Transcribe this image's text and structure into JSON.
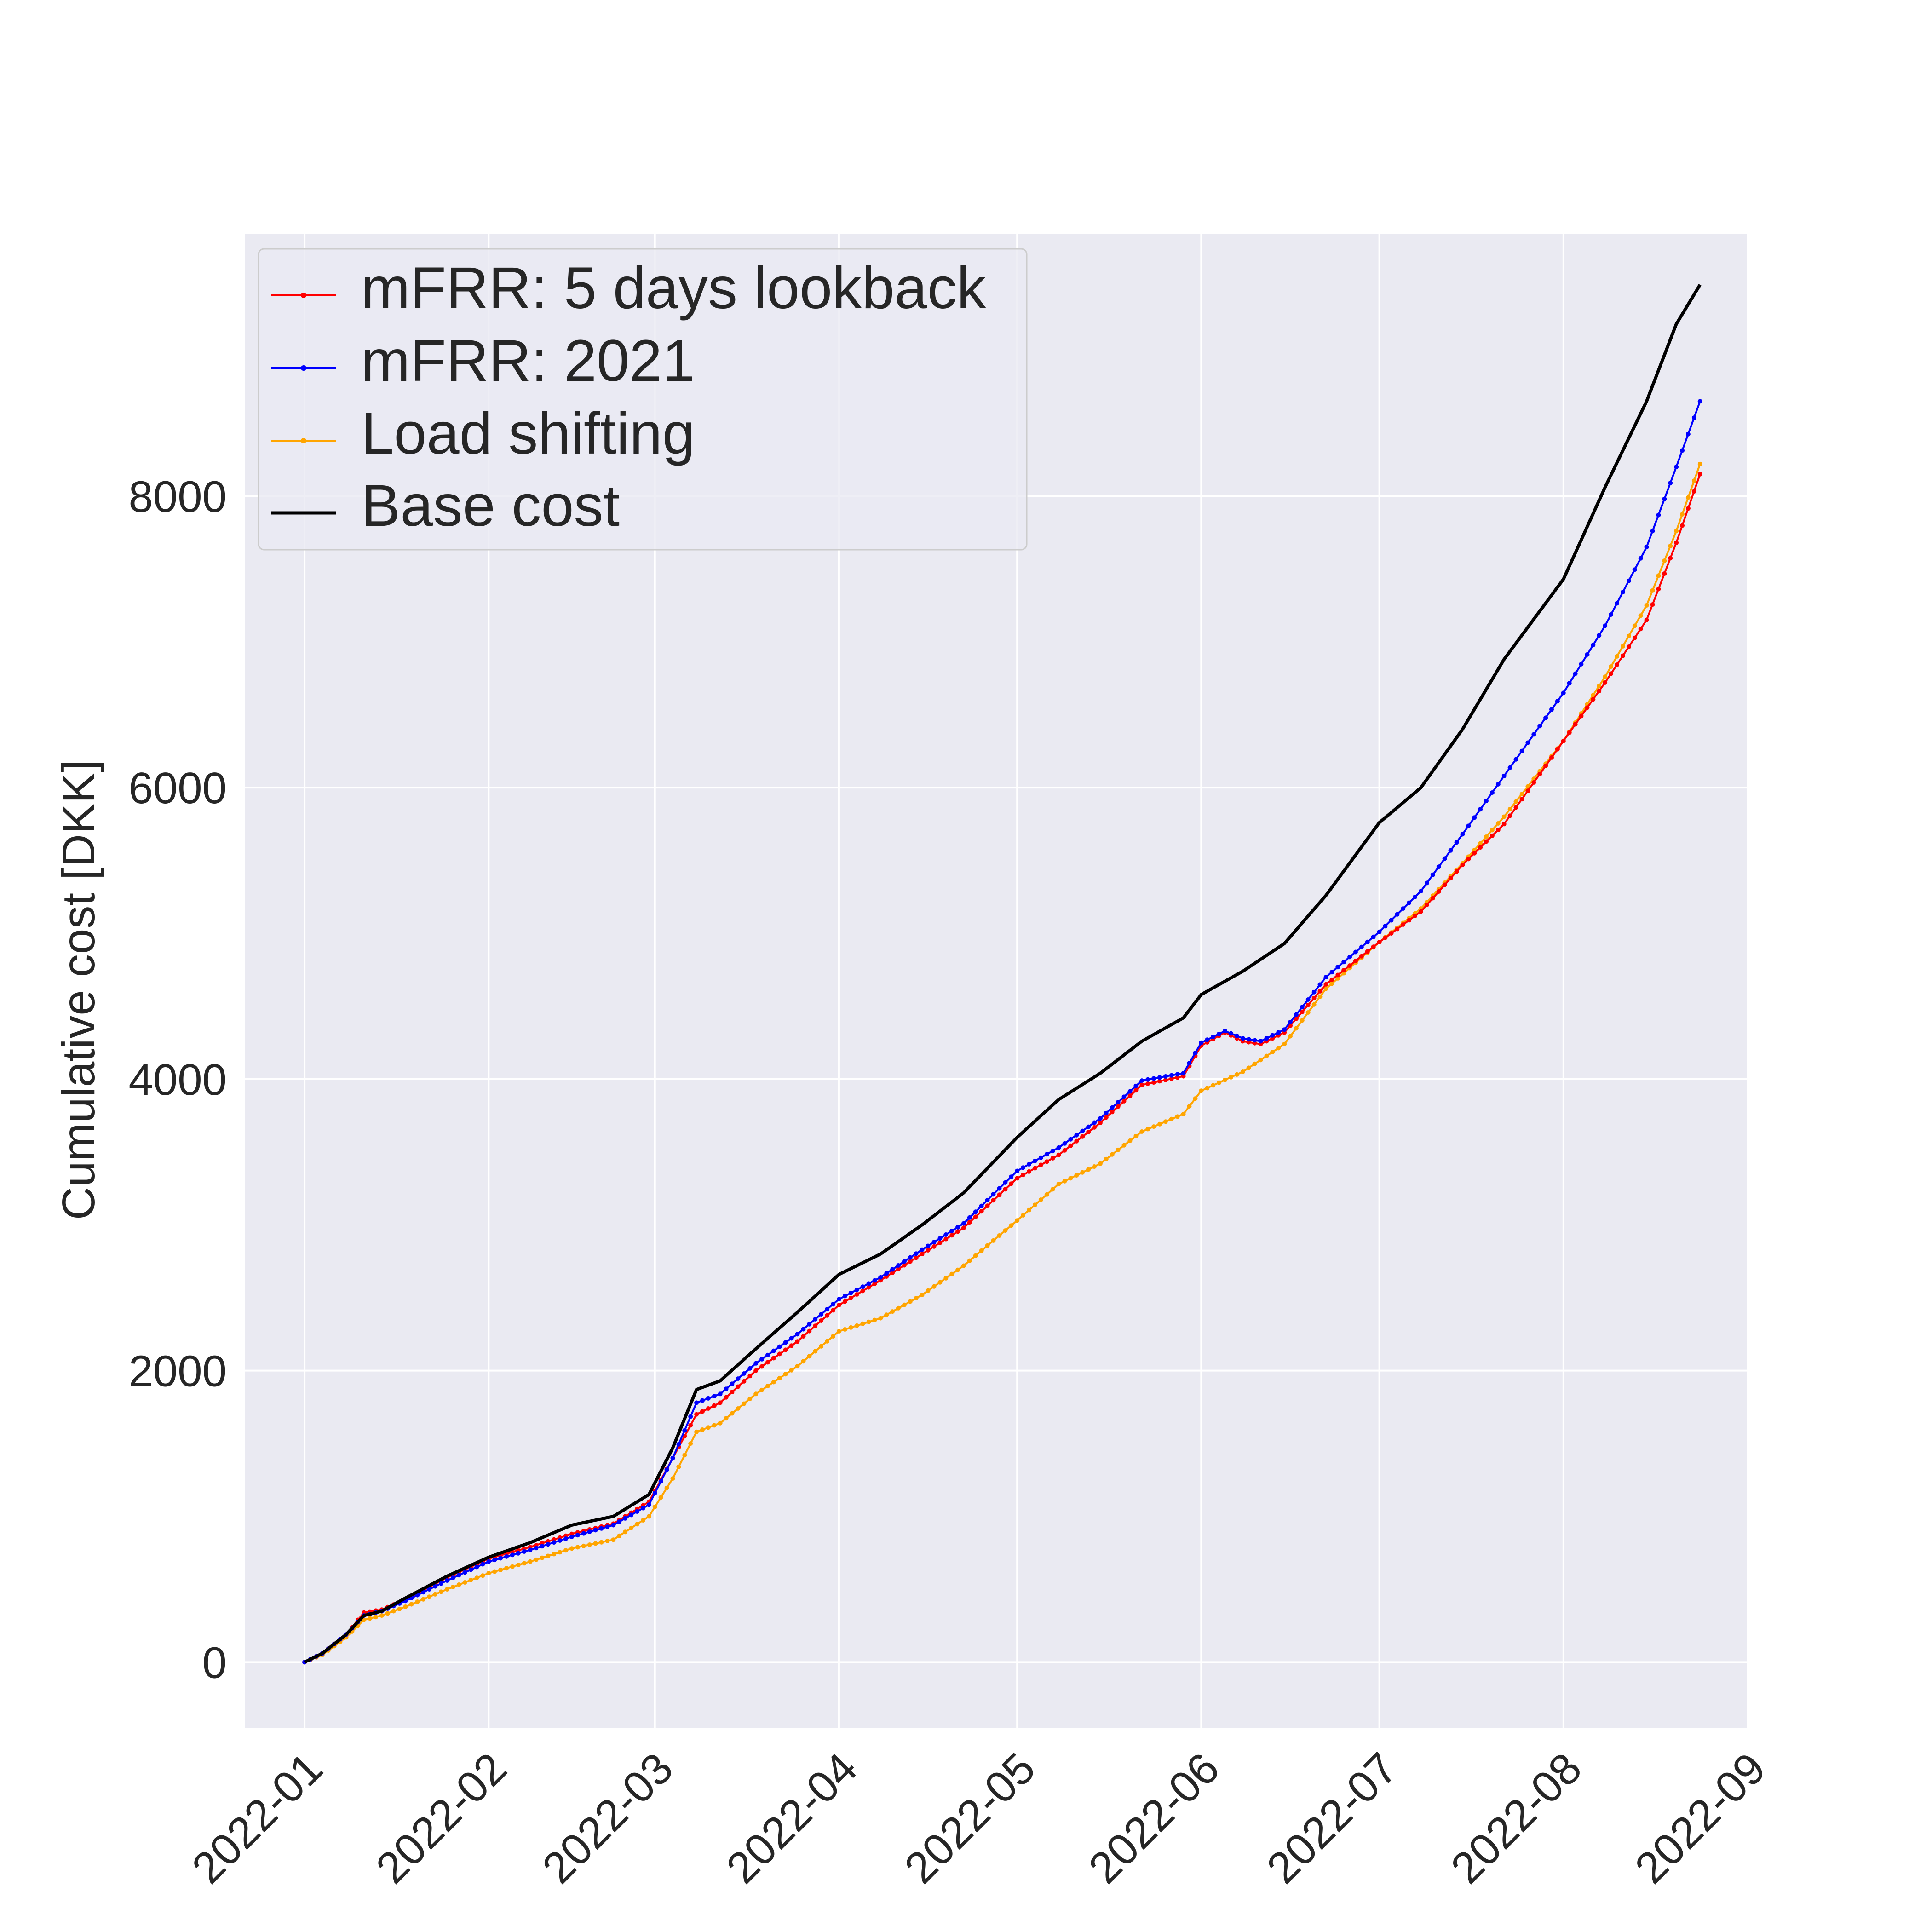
{
  "chart_data": {
    "type": "line",
    "title": "",
    "xlabel": "",
    "ylabel": "Cumulative cost [DKK]",
    "x_ticks": [
      "2022-01",
      "2022-02",
      "2022-03",
      "2022-04",
      "2022-05",
      "2022-06",
      "2022-07",
      "2022-08",
      "2022-09"
    ],
    "y_ticks": [
      0,
      2000,
      4000,
      6000,
      8000
    ],
    "xlim": [
      "2021-12-22",
      "2022-09-01"
    ],
    "ylim": [
      -450,
      9800
    ],
    "grid": true,
    "background": "#eaeaf2",
    "legend_position": "upper-left",
    "series": [
      {
        "name": "mFRR: 5 days lookback",
        "color": "#ff0000",
        "markers": true,
        "points": [
          [
            "2022-01-01",
            0
          ],
          [
            "2022-01-04",
            60
          ],
          [
            "2022-01-08",
            190
          ],
          [
            "2022-01-11",
            340
          ],
          [
            "2022-01-14",
            360
          ],
          [
            "2022-01-18",
            430
          ],
          [
            "2022-01-25",
            580
          ],
          [
            "2022-02-01",
            710
          ],
          [
            "2022-02-08",
            790
          ],
          [
            "2022-02-15",
            880
          ],
          [
            "2022-02-22",
            950
          ],
          [
            "2022-02-28",
            1100
          ],
          [
            "2022-03-04",
            1400
          ],
          [
            "2022-03-08",
            1700
          ],
          [
            "2022-03-12",
            1780
          ],
          [
            "2022-03-18",
            2000
          ],
          [
            "2022-03-25",
            2200
          ],
          [
            "2022-04-01",
            2450
          ],
          [
            "2022-04-08",
            2620
          ],
          [
            "2022-04-15",
            2800
          ],
          [
            "2022-04-22",
            2980
          ],
          [
            "2022-05-01",
            3320
          ],
          [
            "2022-05-08",
            3480
          ],
          [
            "2022-05-15",
            3700
          ],
          [
            "2022-05-22",
            3960
          ],
          [
            "2022-05-29",
            4020
          ],
          [
            "2022-06-01",
            4230
          ],
          [
            "2022-06-05",
            4320
          ],
          [
            "2022-06-08",
            4260
          ],
          [
            "2022-06-11",
            4240
          ],
          [
            "2022-06-15",
            4320
          ],
          [
            "2022-06-22",
            4650
          ],
          [
            "2022-07-01",
            4940
          ],
          [
            "2022-07-08",
            5150
          ],
          [
            "2022-07-15",
            5470
          ],
          [
            "2022-07-22",
            5750
          ],
          [
            "2022-08-01",
            6320
          ],
          [
            "2022-08-08",
            6720
          ],
          [
            "2022-08-15",
            7150
          ],
          [
            "2022-08-20",
            7680
          ],
          [
            "2022-08-24",
            8150
          ]
        ]
      },
      {
        "name": "mFRR: 2021",
        "color": "#0000ff",
        "markers": true,
        "points": [
          [
            "2022-01-01",
            0
          ],
          [
            "2022-01-04",
            60
          ],
          [
            "2022-01-08",
            190
          ],
          [
            "2022-01-11",
            320
          ],
          [
            "2022-01-14",
            350
          ],
          [
            "2022-01-18",
            420
          ],
          [
            "2022-01-25",
            560
          ],
          [
            "2022-02-01",
            690
          ],
          [
            "2022-02-08",
            770
          ],
          [
            "2022-02-15",
            860
          ],
          [
            "2022-02-22",
            940
          ],
          [
            "2022-02-28",
            1080
          ],
          [
            "2022-03-04",
            1400
          ],
          [
            "2022-03-08",
            1780
          ],
          [
            "2022-03-12",
            1840
          ],
          [
            "2022-03-18",
            2050
          ],
          [
            "2022-03-25",
            2250
          ],
          [
            "2022-04-01",
            2490
          ],
          [
            "2022-04-08",
            2640
          ],
          [
            "2022-04-15",
            2830
          ],
          [
            "2022-04-22",
            3010
          ],
          [
            "2022-05-01",
            3370
          ],
          [
            "2022-05-08",
            3530
          ],
          [
            "2022-05-15",
            3730
          ],
          [
            "2022-05-22",
            3990
          ],
          [
            "2022-05-29",
            4040
          ],
          [
            "2022-06-01",
            4250
          ],
          [
            "2022-06-05",
            4330
          ],
          [
            "2022-06-08",
            4280
          ],
          [
            "2022-06-11",
            4260
          ],
          [
            "2022-06-15",
            4340
          ],
          [
            "2022-06-22",
            4700
          ],
          [
            "2022-07-01",
            5010
          ],
          [
            "2022-07-08",
            5290
          ],
          [
            "2022-07-15",
            5680
          ],
          [
            "2022-07-22",
            6080
          ],
          [
            "2022-08-01",
            6650
          ],
          [
            "2022-08-08",
            7110
          ],
          [
            "2022-08-15",
            7650
          ],
          [
            "2022-08-20",
            8200
          ],
          [
            "2022-08-24",
            8650
          ]
        ]
      },
      {
        "name": "Load shifting",
        "color": "#ffa500",
        "markers": true,
        "points": [
          [
            "2022-01-01",
            0
          ],
          [
            "2022-01-04",
            50
          ],
          [
            "2022-01-08",
            170
          ],
          [
            "2022-01-11",
            290
          ],
          [
            "2022-01-14",
            320
          ],
          [
            "2022-01-18",
            380
          ],
          [
            "2022-01-25",
            500
          ],
          [
            "2022-02-01",
            610
          ],
          [
            "2022-02-08",
            690
          ],
          [
            "2022-02-15",
            780
          ],
          [
            "2022-02-22",
            840
          ],
          [
            "2022-02-28",
            1000
          ],
          [
            "2022-03-04",
            1260
          ],
          [
            "2022-03-08",
            1580
          ],
          [
            "2022-03-12",
            1640
          ],
          [
            "2022-03-18",
            1840
          ],
          [
            "2022-03-25",
            2030
          ],
          [
            "2022-04-01",
            2270
          ],
          [
            "2022-04-08",
            2360
          ],
          [
            "2022-04-15",
            2520
          ],
          [
            "2022-04-22",
            2720
          ],
          [
            "2022-05-01",
            3030
          ],
          [
            "2022-05-08",
            3280
          ],
          [
            "2022-05-15",
            3420
          ],
          [
            "2022-05-22",
            3640
          ],
          [
            "2022-05-29",
            3760
          ],
          [
            "2022-06-01",
            3920
          ],
          [
            "2022-06-08",
            4050
          ],
          [
            "2022-06-15",
            4240
          ],
          [
            "2022-06-22",
            4620
          ],
          [
            "2022-07-01",
            4940
          ],
          [
            "2022-07-08",
            5170
          ],
          [
            "2022-07-15",
            5480
          ],
          [
            "2022-07-22",
            5800
          ],
          [
            "2022-08-01",
            6320
          ],
          [
            "2022-08-08",
            6760
          ],
          [
            "2022-08-15",
            7250
          ],
          [
            "2022-08-20",
            7760
          ],
          [
            "2022-08-24",
            8220
          ]
        ]
      },
      {
        "name": "Base cost",
        "color": "#000000",
        "markers": false,
        "points": [
          [
            "2022-01-01",
            0
          ],
          [
            "2022-01-04",
            60
          ],
          [
            "2022-01-08",
            190
          ],
          [
            "2022-01-11",
            320
          ],
          [
            "2022-01-14",
            350
          ],
          [
            "2022-01-18",
            440
          ],
          [
            "2022-01-25",
            590
          ],
          [
            "2022-02-01",
            720
          ],
          [
            "2022-02-08",
            820
          ],
          [
            "2022-02-15",
            940
          ],
          [
            "2022-02-22",
            1000
          ],
          [
            "2022-02-28",
            1150
          ],
          [
            "2022-03-04",
            1470
          ],
          [
            "2022-03-08",
            1870
          ],
          [
            "2022-03-12",
            1930
          ],
          [
            "2022-03-18",
            2150
          ],
          [
            "2022-03-25",
            2400
          ],
          [
            "2022-04-01",
            2660
          ],
          [
            "2022-04-08",
            2800
          ],
          [
            "2022-04-15",
            3000
          ],
          [
            "2022-04-22",
            3220
          ],
          [
            "2022-05-01",
            3600
          ],
          [
            "2022-05-08",
            3860
          ],
          [
            "2022-05-15",
            4040
          ],
          [
            "2022-05-22",
            4260
          ],
          [
            "2022-05-29",
            4420
          ],
          [
            "2022-06-01",
            4580
          ],
          [
            "2022-06-08",
            4740
          ],
          [
            "2022-06-15",
            4930
          ],
          [
            "2022-06-22",
            5260
          ],
          [
            "2022-07-01",
            5760
          ],
          [
            "2022-07-08",
            6000
          ],
          [
            "2022-07-15",
            6400
          ],
          [
            "2022-07-22",
            6880
          ],
          [
            "2022-08-01",
            7430
          ],
          [
            "2022-08-08",
            8060
          ],
          [
            "2022-08-15",
            8650
          ],
          [
            "2022-08-20",
            9180
          ],
          [
            "2022-08-24",
            9450
          ]
        ]
      }
    ]
  }
}
